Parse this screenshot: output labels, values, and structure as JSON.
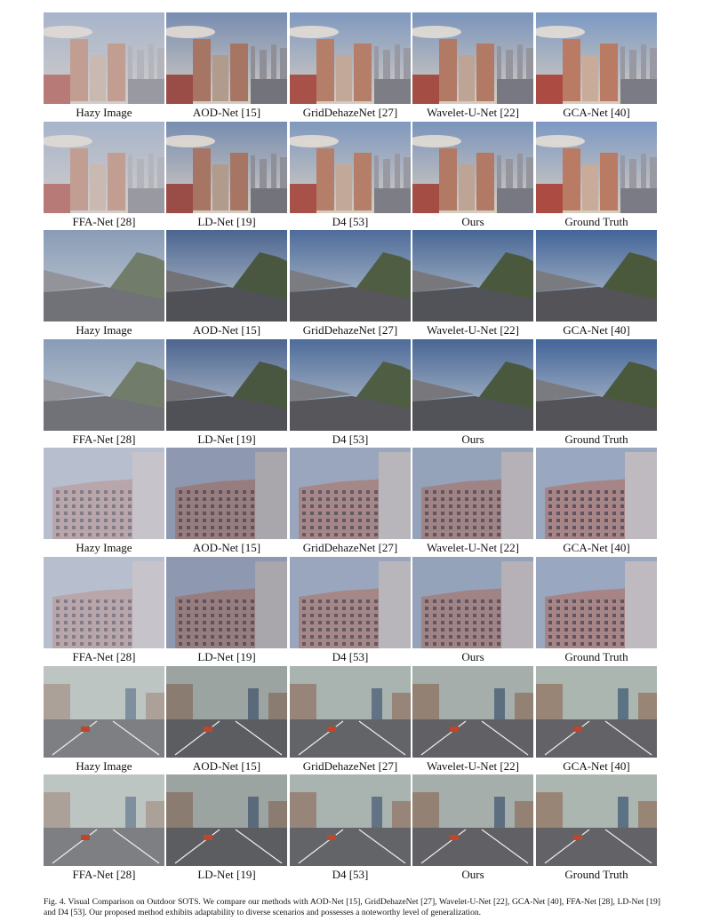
{
  "figure": {
    "rows": [
      {
        "scene": "city",
        "labels": [
          "Hazy Image",
          "AOD-Net [15]",
          "GridDehazeNet [27]",
          "Wavelet-U-Net [22]",
          "GCA-Net [40]"
        ]
      },
      {
        "scene": "city",
        "labels": [
          "FFA-Net [28]",
          "LD-Net [19]",
          "D4 [53]",
          "Ours",
          "Ground Truth"
        ]
      },
      {
        "scene": "road",
        "labels": [
          "Hazy Image",
          "AOD-Net [15]",
          "GridDehazeNet [27]",
          "Wavelet-U-Net [22]",
          "GCA-Net [40]"
        ]
      },
      {
        "scene": "road",
        "labels": [
          "FFA-Net [28]",
          "LD-Net [19]",
          "D4 [53]",
          "Ours",
          "Ground Truth"
        ]
      },
      {
        "scene": "apartments",
        "labels": [
          "Hazy Image",
          "AOD-Net [15]",
          "GridDehazeNet [27]",
          "Wavelet-U-Net [22]",
          "GCA-Net [40]"
        ]
      },
      {
        "scene": "apartments",
        "labels": [
          "FFA-Net [28]",
          "LD-Net [19]",
          "D4 [53]",
          "Ours",
          "Ground Truth"
        ]
      },
      {
        "scene": "highway",
        "labels": [
          "Hazy Image",
          "AOD-Net [15]",
          "GridDehazeNet [27]",
          "Wavelet-U-Net [22]",
          "GCA-Net [40]"
        ]
      },
      {
        "scene": "highway",
        "labels": [
          "FFA-Net [28]",
          "LD-Net [19]",
          "D4 [53]",
          "Ours",
          "Ground Truth"
        ]
      }
    ],
    "caption": "Fig. 4. Visual Comparison on Outdoor SOTS. We compare our methods with AOD-Net [15], GridDehazeNet [27], Wavelet-U-Net [22], GCA-Net [40], FFA-Net [28], LD-Net [19] and D4 [53]. Our proposed method exhibits adaptability to diverse scenarios and possesses a noteworthy level of generalization."
  }
}
